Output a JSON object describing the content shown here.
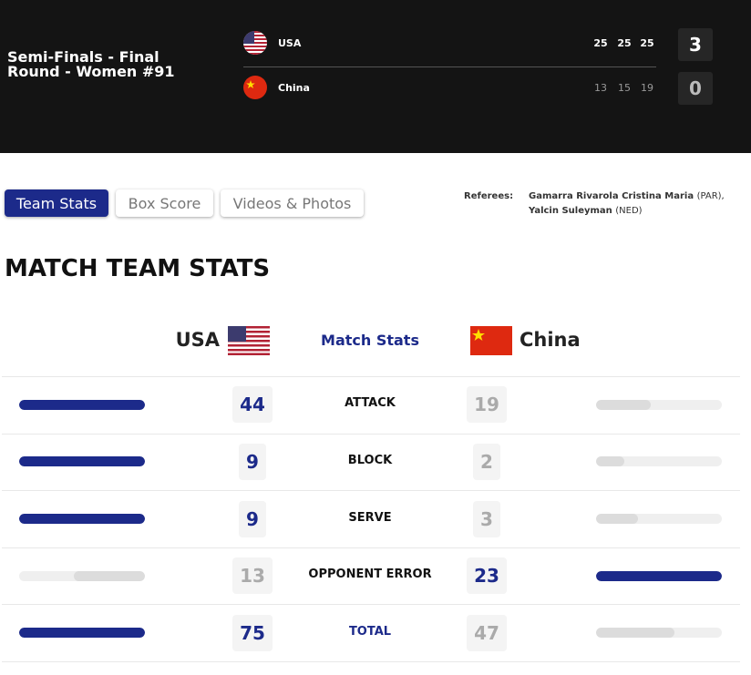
{
  "header": {
    "title": "Semi-Finals - Final Round - Women #91",
    "teams": [
      {
        "name": "USA",
        "sets": [
          25,
          25,
          25
        ],
        "score": 3
      },
      {
        "name": "China",
        "sets": [
          13,
          15,
          19
        ],
        "score": 0
      }
    ]
  },
  "tabs": [
    "Team Stats",
    "Box Score",
    "Videos & Photos"
  ],
  "active_tab": 0,
  "referees": {
    "label": "Referees:",
    "people": [
      {
        "name": "Gamarra Rivarola Cristina Maria",
        "country": "(PAR),"
      },
      {
        "name": "Yalcin Suleyman",
        "country": "(NED)"
      }
    ]
  },
  "stats": {
    "title": "MATCH TEAM STATS",
    "home": "USA",
    "away": "China",
    "heading": "Match Stats",
    "rows": [
      {
        "label": "ATTACK",
        "home": 44,
        "away": 19
      },
      {
        "label": "BLOCK",
        "home": 9,
        "away": 2
      },
      {
        "label": "SERVE",
        "home": 9,
        "away": 3
      },
      {
        "label": "OPPONENT ERROR",
        "home": 13,
        "away": 23
      },
      {
        "label": "TOTAL",
        "home": 75,
        "away": 47
      }
    ]
  }
}
